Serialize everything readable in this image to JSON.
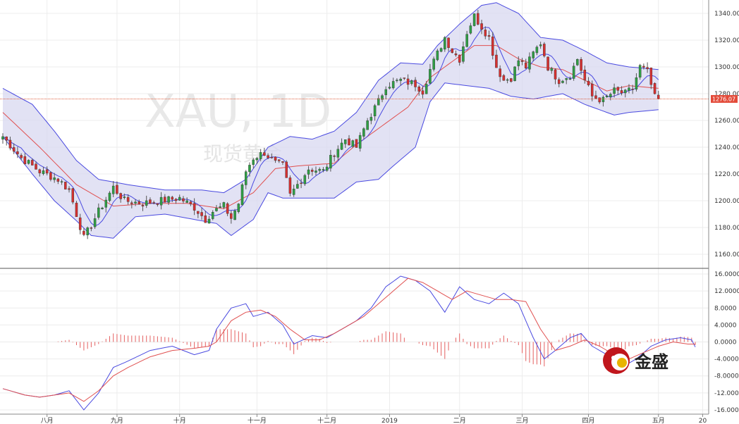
{
  "chart_data": [
    {
      "type": "candlestick",
      "ylim": [
        1150,
        1350
      ],
      "y_ticks": [
        1160,
        1180,
        1200,
        1220,
        1240,
        1260,
        1280,
        1300,
        1320,
        1340
      ],
      "y_tick_labels": [
        "1160.00",
        "1180.00",
        "1200.00",
        "1220.00",
        "1240.00",
        "1260.00",
        "1280.00",
        "1300.00",
        "1320.00",
        "1340.00"
      ],
      "last_price": 1276.07,
      "last_price_label": "1276.07",
      "close_anchors": [
        [
          0,
          1248
        ],
        [
          5,
          1232
        ],
        [
          10,
          1222
        ],
        [
          15,
          1216
        ],
        [
          18,
          1208
        ],
        [
          20,
          1190
        ],
        [
          22,
          1172
        ],
        [
          26,
          1192
        ],
        [
          30,
          1210
        ],
        [
          33,
          1200
        ],
        [
          38,
          1198
        ],
        [
          43,
          1200
        ],
        [
          48,
          1202
        ],
        [
          52,
          1195
        ],
        [
          55,
          1186
        ],
        [
          57,
          1192
        ],
        [
          60,
          1196
        ],
        [
          62,
          1187
        ],
        [
          64,
          1198
        ],
        [
          66,
          1222
        ],
        [
          68,
          1232
        ],
        [
          71,
          1236
        ],
        [
          74,
          1228
        ],
        [
          76,
          1226
        ],
        [
          78,
          1204
        ],
        [
          80,
          1212
        ],
        [
          83,
          1224
        ],
        [
          87,
          1222
        ],
        [
          90,
          1236
        ],
        [
          93,
          1246
        ],
        [
          96,
          1240
        ],
        [
          99,
          1260
        ],
        [
          102,
          1274
        ],
        [
          104,
          1286
        ],
        [
          108,
          1290
        ],
        [
          112,
          1287
        ],
        [
          114,
          1282
        ],
        [
          116,
          1298
        ],
        [
          118,
          1310
        ],
        [
          120,
          1322
        ],
        [
          122,
          1312
        ],
        [
          124,
          1306
        ],
        [
          126,
          1326
        ],
        [
          128,
          1338
        ],
        [
          130,
          1330
        ],
        [
          132,
          1322
        ],
        [
          134,
          1300
        ],
        [
          136,
          1290
        ],
        [
          138,
          1292
        ],
        [
          140,
          1305
        ],
        [
          142,
          1300
        ],
        [
          144,
          1310
        ],
        [
          146,
          1318
        ],
        [
          148,
          1300
        ],
        [
          151,
          1290
        ],
        [
          154,
          1294
        ],
        [
          156,
          1306
        ],
        [
          158,
          1290
        ],
        [
          160,
          1278
        ],
        [
          163,
          1275
        ],
        [
          166,
          1282
        ],
        [
          169,
          1280
        ],
        [
          171,
          1284
        ],
        [
          173,
          1300
        ],
        [
          175,
          1296
        ],
        [
          177,
          1277
        ],
        [
          178,
          1276
        ]
      ],
      "upper_band_anchors": [
        [
          0,
          1284
        ],
        [
          8,
          1272
        ],
        [
          14,
          1252
        ],
        [
          20,
          1230
        ],
        [
          26,
          1216
        ],
        [
          34,
          1212
        ],
        [
          44,
          1208
        ],
        [
          54,
          1208
        ],
        [
          60,
          1206
        ],
        [
          66,
          1216
        ],
        [
          72,
          1240
        ],
        [
          78,
          1248
        ],
        [
          84,
          1246
        ],
        [
          90,
          1252
        ],
        [
          96,
          1266
        ],
        [
          102,
          1290
        ],
        [
          108,
          1303
        ],
        [
          114,
          1302
        ],
        [
          118,
          1316
        ],
        [
          124,
          1332
        ],
        [
          130,
          1346
        ],
        [
          134,
          1348
        ],
        [
          140,
          1340
        ],
        [
          146,
          1322
        ],
        [
          152,
          1320
        ],
        [
          158,
          1312
        ],
        [
          164,
          1303
        ],
        [
          170,
          1300
        ],
        [
          178,
          1298
        ]
      ],
      "lower_band_anchors": [
        [
          0,
          1248
        ],
        [
          8,
          1220
        ],
        [
          14,
          1200
        ],
        [
          20,
          1185
        ],
        [
          24,
          1174
        ],
        [
          30,
          1172
        ],
        [
          36,
          1188
        ],
        [
          44,
          1190
        ],
        [
          52,
          1186
        ],
        [
          58,
          1183
        ],
        [
          62,
          1174
        ],
        [
          68,
          1186
        ],
        [
          72,
          1206
        ],
        [
          76,
          1202
        ],
        [
          84,
          1202
        ],
        [
          90,
          1202
        ],
        [
          96,
          1214
        ],
        [
          102,
          1216
        ],
        [
          106,
          1226
        ],
        [
          112,
          1240
        ],
        [
          116,
          1274
        ],
        [
          120,
          1288
        ],
        [
          126,
          1286
        ],
        [
          132,
          1284
        ],
        [
          138,
          1278
        ],
        [
          144,
          1276
        ],
        [
          152,
          1280
        ],
        [
          158,
          1272
        ],
        [
          166,
          1264
        ],
        [
          170,
          1266
        ],
        [
          178,
          1268
        ]
      ],
      "middle_band_anchors": [
        [
          0,
          1266
        ],
        [
          10,
          1240
        ],
        [
          20,
          1212
        ],
        [
          30,
          1196
        ],
        [
          40,
          1198
        ],
        [
          50,
          1198
        ],
        [
          60,
          1194
        ],
        [
          68,
          1206
        ],
        [
          74,
          1224
        ],
        [
          80,
          1226
        ],
        [
          90,
          1228
        ],
        [
          96,
          1242
        ],
        [
          104,
          1258
        ],
        [
          110,
          1270
        ],
        [
          116,
          1292
        ],
        [
          122,
          1304
        ],
        [
          128,
          1316
        ],
        [
          134,
          1316
        ],
        [
          140,
          1306
        ],
        [
          146,
          1300
        ],
        [
          152,
          1298
        ],
        [
          158,
          1290
        ],
        [
          164,
          1282
        ],
        [
          170,
          1286
        ],
        [
          178,
          1284
        ]
      ]
    },
    {
      "type": "line",
      "ylim": [
        -17,
        17
      ],
      "y_ticks": [
        16,
        12,
        8,
        4,
        0,
        -4,
        -8,
        -12,
        -16
      ],
      "y_tick_labels": [
        "16.0000",
        "12.0000",
        "8.0000",
        "4.0000",
        "0.0000",
        "-4.0000",
        "-8.0000",
        "-12.0000",
        "-16.0000"
      ],
      "x_ticks": [
        {
          "i": 12,
          "label": "八月"
        },
        {
          "i": 31,
          "label": "九月"
        },
        {
          "i": 48,
          "label": "十月"
        },
        {
          "i": 69,
          "label": "十一月"
        },
        {
          "i": 88,
          "label": "十二月"
        },
        {
          "i": 105,
          "label": "2019"
        },
        {
          "i": 124,
          "label": "二月"
        },
        {
          "i": 141,
          "label": "三月"
        },
        {
          "i": 159,
          "label": "四月"
        },
        {
          "i": 178,
          "label": "五月"
        },
        {
          "i": 190,
          "label": "20"
        }
      ],
      "macd_anchors": [
        [
          0,
          -11
        ],
        [
          6,
          -12.5
        ],
        [
          10,
          -13
        ],
        [
          14,
          -12.5
        ],
        [
          18,
          -11.5
        ],
        [
          22,
          -16
        ],
        [
          26,
          -12
        ],
        [
          30,
          -6
        ],
        [
          34,
          -4.5
        ],
        [
          40,
          -2
        ],
        [
          46,
          -1
        ],
        [
          52,
          -3
        ],
        [
          56,
          -2
        ],
        [
          58,
          3
        ],
        [
          62,
          8
        ],
        [
          66,
          9
        ],
        [
          68,
          6
        ],
        [
          72,
          7
        ],
        [
          76,
          4
        ],
        [
          79,
          -0.5
        ],
        [
          84,
          1.5
        ],
        [
          88,
          1
        ],
        [
          92,
          3
        ],
        [
          96,
          5
        ],
        [
          100,
          8
        ],
        [
          104,
          13
        ],
        [
          108,
          15.5
        ],
        [
          112,
          14.5
        ],
        [
          116,
          12
        ],
        [
          120,
          7
        ],
        [
          124,
          13
        ],
        [
          128,
          10
        ],
        [
          132,
          9
        ],
        [
          136,
          11.5
        ],
        [
          140,
          9
        ],
        [
          144,
          1
        ],
        [
          147,
          -4
        ],
        [
          150,
          -2
        ],
        [
          154,
          1
        ],
        [
          157,
          2
        ],
        [
          160,
          -1
        ],
        [
          164,
          -3
        ],
        [
          168,
          -6
        ],
        [
          172,
          -4
        ],
        [
          176,
          -1
        ],
        [
          180,
          0.5
        ],
        [
          184,
          1
        ],
        [
          187,
          0.5
        ],
        [
          188,
          -1.2
        ]
      ],
      "signal_anchors": [
        [
          0,
          -11
        ],
        [
          6,
          -12.5
        ],
        [
          10,
          -13
        ],
        [
          14,
          -12.5
        ],
        [
          18,
          -12
        ],
        [
          22,
          -14
        ],
        [
          26,
          -11.5
        ],
        [
          30,
          -8
        ],
        [
          34,
          -6
        ],
        [
          40,
          -3.5
        ],
        [
          46,
          -2
        ],
        [
          52,
          -1.5
        ],
        [
          56,
          -1
        ],
        [
          58,
          0
        ],
        [
          62,
          5
        ],
        [
          66,
          7
        ],
        [
          70,
          7.5
        ],
        [
          74,
          6
        ],
        [
          78,
          3
        ],
        [
          82,
          0.5
        ],
        [
          86,
          0.5
        ],
        [
          90,
          2
        ],
        [
          94,
          4
        ],
        [
          98,
          6
        ],
        [
          102,
          9
        ],
        [
          106,
          12
        ],
        [
          110,
          15
        ],
        [
          114,
          14
        ],
        [
          118,
          12
        ],
        [
          122,
          10
        ],
        [
          126,
          12
        ],
        [
          130,
          11
        ],
        [
          134,
          10
        ],
        [
          138,
          10
        ],
        [
          142,
          9.5
        ],
        [
          146,
          3
        ],
        [
          150,
          -2
        ],
        [
          154,
          -1
        ],
        [
          158,
          0.5
        ],
        [
          162,
          -1
        ],
        [
          166,
          -3
        ],
        [
          170,
          -4
        ],
        [
          174,
          -2.5
        ],
        [
          178,
          -1
        ],
        [
          182,
          0
        ],
        [
          186,
          -0.5
        ],
        [
          188,
          -0.5
        ]
      ]
    }
  ],
  "watermark": {
    "symbol": "XAU, 1D",
    "subtitle": "现货黄金"
  },
  "logo": {
    "text": "金盛"
  }
}
